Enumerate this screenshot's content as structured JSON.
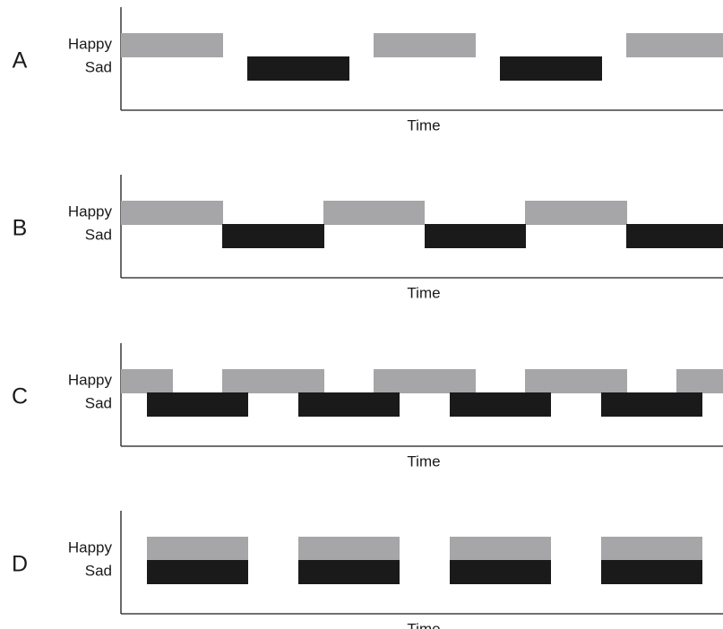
{
  "panels": [
    {
      "label": "A",
      "rows": [
        "Happy",
        "Sad"
      ],
      "x_label": "Time"
    },
    {
      "label": "B",
      "rows": [
        "Happy",
        "Sad"
      ],
      "x_label": "Time"
    },
    {
      "label": "C",
      "rows": [
        "Happy",
        "Sad"
      ],
      "x_label": "Time"
    },
    {
      "label": "D",
      "rows": [
        "Happy",
        "Sad"
      ],
      "x_label": "Time"
    }
  ]
}
